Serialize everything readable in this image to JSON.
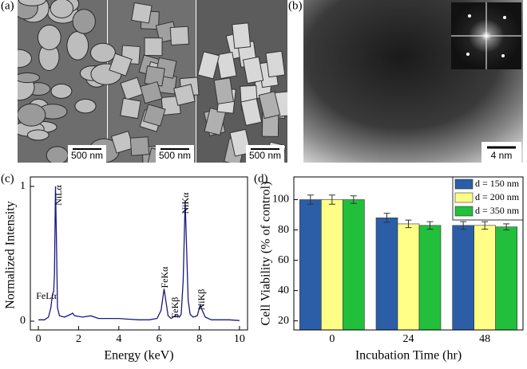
{
  "panel_labels": [
    "(a)",
    "(b)",
    "(c)",
    "(d)"
  ],
  "micrographs": {
    "a_scale_bars": [
      "500 nm",
      "500 nm",
      "500 nm"
    ],
    "b_scale_bar": "4 nm"
  },
  "chart_data": [
    {
      "type": "line",
      "xlabel": "Energy (keV)",
      "ylabel": "Normalized Intensity",
      "color": "#1a1a80",
      "x": [
        0,
        0.3,
        0.5,
        0.62,
        0.7,
        0.76,
        0.8,
        0.85,
        0.9,
        0.95,
        1.05,
        1.3,
        1.6,
        1.7,
        1.8,
        2.2,
        2.6,
        3.0,
        3.5,
        4.0,
        4.5,
        5.0,
        5.5,
        5.9,
        6.1,
        6.25,
        6.35,
        6.45,
        6.6,
        6.8,
        6.9,
        7.0,
        7.1,
        7.2,
        7.3,
        7.38,
        7.45,
        7.55,
        7.7,
        7.9,
        8.05,
        8.15,
        8.3,
        8.6,
        9.0,
        9.5,
        10.0
      ],
      "values": [
        0.01,
        0.01,
        0.03,
        0.1,
        0.2,
        0.22,
        0.35,
        1.0,
        0.6,
        0.1,
        0.04,
        0.03,
        0.05,
        0.06,
        0.04,
        0.03,
        0.04,
        0.02,
        0.02,
        0.02,
        0.015,
        0.01,
        0.01,
        0.02,
        0.08,
        0.24,
        0.14,
        0.04,
        0.02,
        0.04,
        0.05,
        0.03,
        0.05,
        0.3,
        0.89,
        0.5,
        0.15,
        0.05,
        0.03,
        0.04,
        0.12,
        0.08,
        0.03,
        0.01,
        0.01,
        0.01,
        0.005
      ],
      "xlim": [
        -0.4,
        10.4
      ],
      "ylim": [
        -0.065,
        1.07
      ],
      "xticks": [
        0,
        2,
        4,
        6,
        8,
        10
      ],
      "yticks": [
        0,
        1
      ],
      "annotations": [
        "FeLα",
        "NiLα",
        "FeKα",
        "FeKβ",
        "NiKα",
        "NiKβ"
      ]
    },
    {
      "type": "bar",
      "xlabel": "Incubation Time (hr)",
      "ylabel": "Cell Viability (% of control)",
      "categories": [
        "0",
        "24",
        "48"
      ],
      "series": [
        {
          "name": "d = 150 nm",
          "color": "#2b5ea7",
          "values": [
            100,
            88,
            83
          ],
          "errors": [
            3,
            3,
            2.5
          ]
        },
        {
          "name": "d = 200 nm",
          "color": "#ffff88",
          "values": [
            100,
            84,
            83
          ],
          "errors": [
            3,
            2.5,
            2.5
          ]
        },
        {
          "name": "d = 350 nm",
          "color": "#22bf3c",
          "values": [
            100,
            83,
            82
          ],
          "errors": [
            2.5,
            2.5,
            2
          ]
        }
      ],
      "ylim": [
        14,
        115
      ],
      "yticks": [
        20,
        40,
        60,
        80,
        100
      ],
      "legend": "upper right"
    }
  ]
}
